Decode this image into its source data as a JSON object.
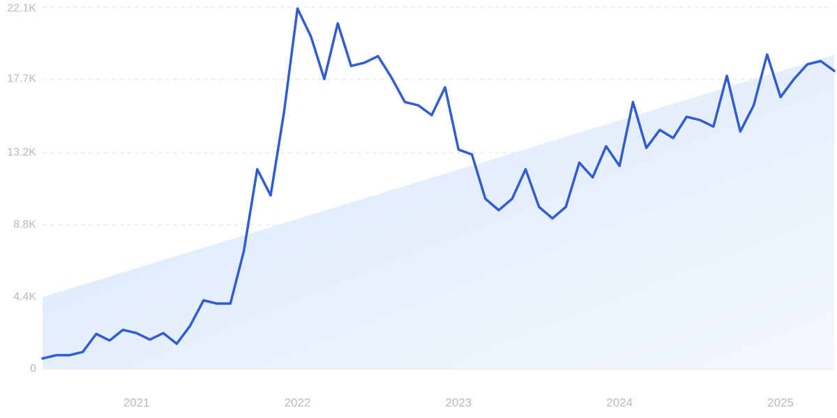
{
  "chart_data": {
    "type": "line",
    "title": "",
    "xlabel": "",
    "ylabel": "",
    "x_start": "2020-06",
    "x_ticks": [
      {
        "label": "2021",
        "date": "2021-01"
      },
      {
        "label": "2022",
        "date": "2022-01"
      },
      {
        "label": "2023",
        "date": "2023-01"
      },
      {
        "label": "2024",
        "date": "2024-01"
      },
      {
        "label": "2025",
        "date": "2025-01"
      }
    ],
    "y_ticks": [
      {
        "label": "0",
        "value": 0
      },
      {
        "label": "4.4K",
        "value": 4400
      },
      {
        "label": "8.8K",
        "value": 8800
      },
      {
        "label": "13.2K",
        "value": 13200
      },
      {
        "label": "17.7K",
        "value": 17700
      },
      {
        "label": "22.1K",
        "value": 22100
      }
    ],
    "ylim": [
      0,
      22100
    ],
    "grid": true,
    "series": [
      {
        "color": "#2f5bd8",
        "values": [
          650,
          850,
          850,
          1050,
          2150,
          1750,
          2400,
          2200,
          1800,
          2200,
          1550,
          2650,
          4200,
          4000,
          4000,
          7200,
          12200,
          10600,
          15700,
          22000,
          20300,
          17700,
          21100,
          18500,
          18700,
          19100,
          17800,
          16300,
          16100,
          15500,
          17200,
          13400,
          13100,
          10400,
          9700,
          10400,
          12200,
          9900,
          9200,
          9900,
          12600,
          11700,
          13600,
          12400,
          16300,
          13500,
          14600,
          14100,
          15400,
          15200,
          14800,
          17900,
          14500,
          16100,
          19200,
          16600,
          17700,
          18600,
          18800,
          18200
        ]
      }
    ],
    "trend": {
      "start": 4400,
      "end": 19200,
      "color": "#dbe9fb"
    }
  }
}
